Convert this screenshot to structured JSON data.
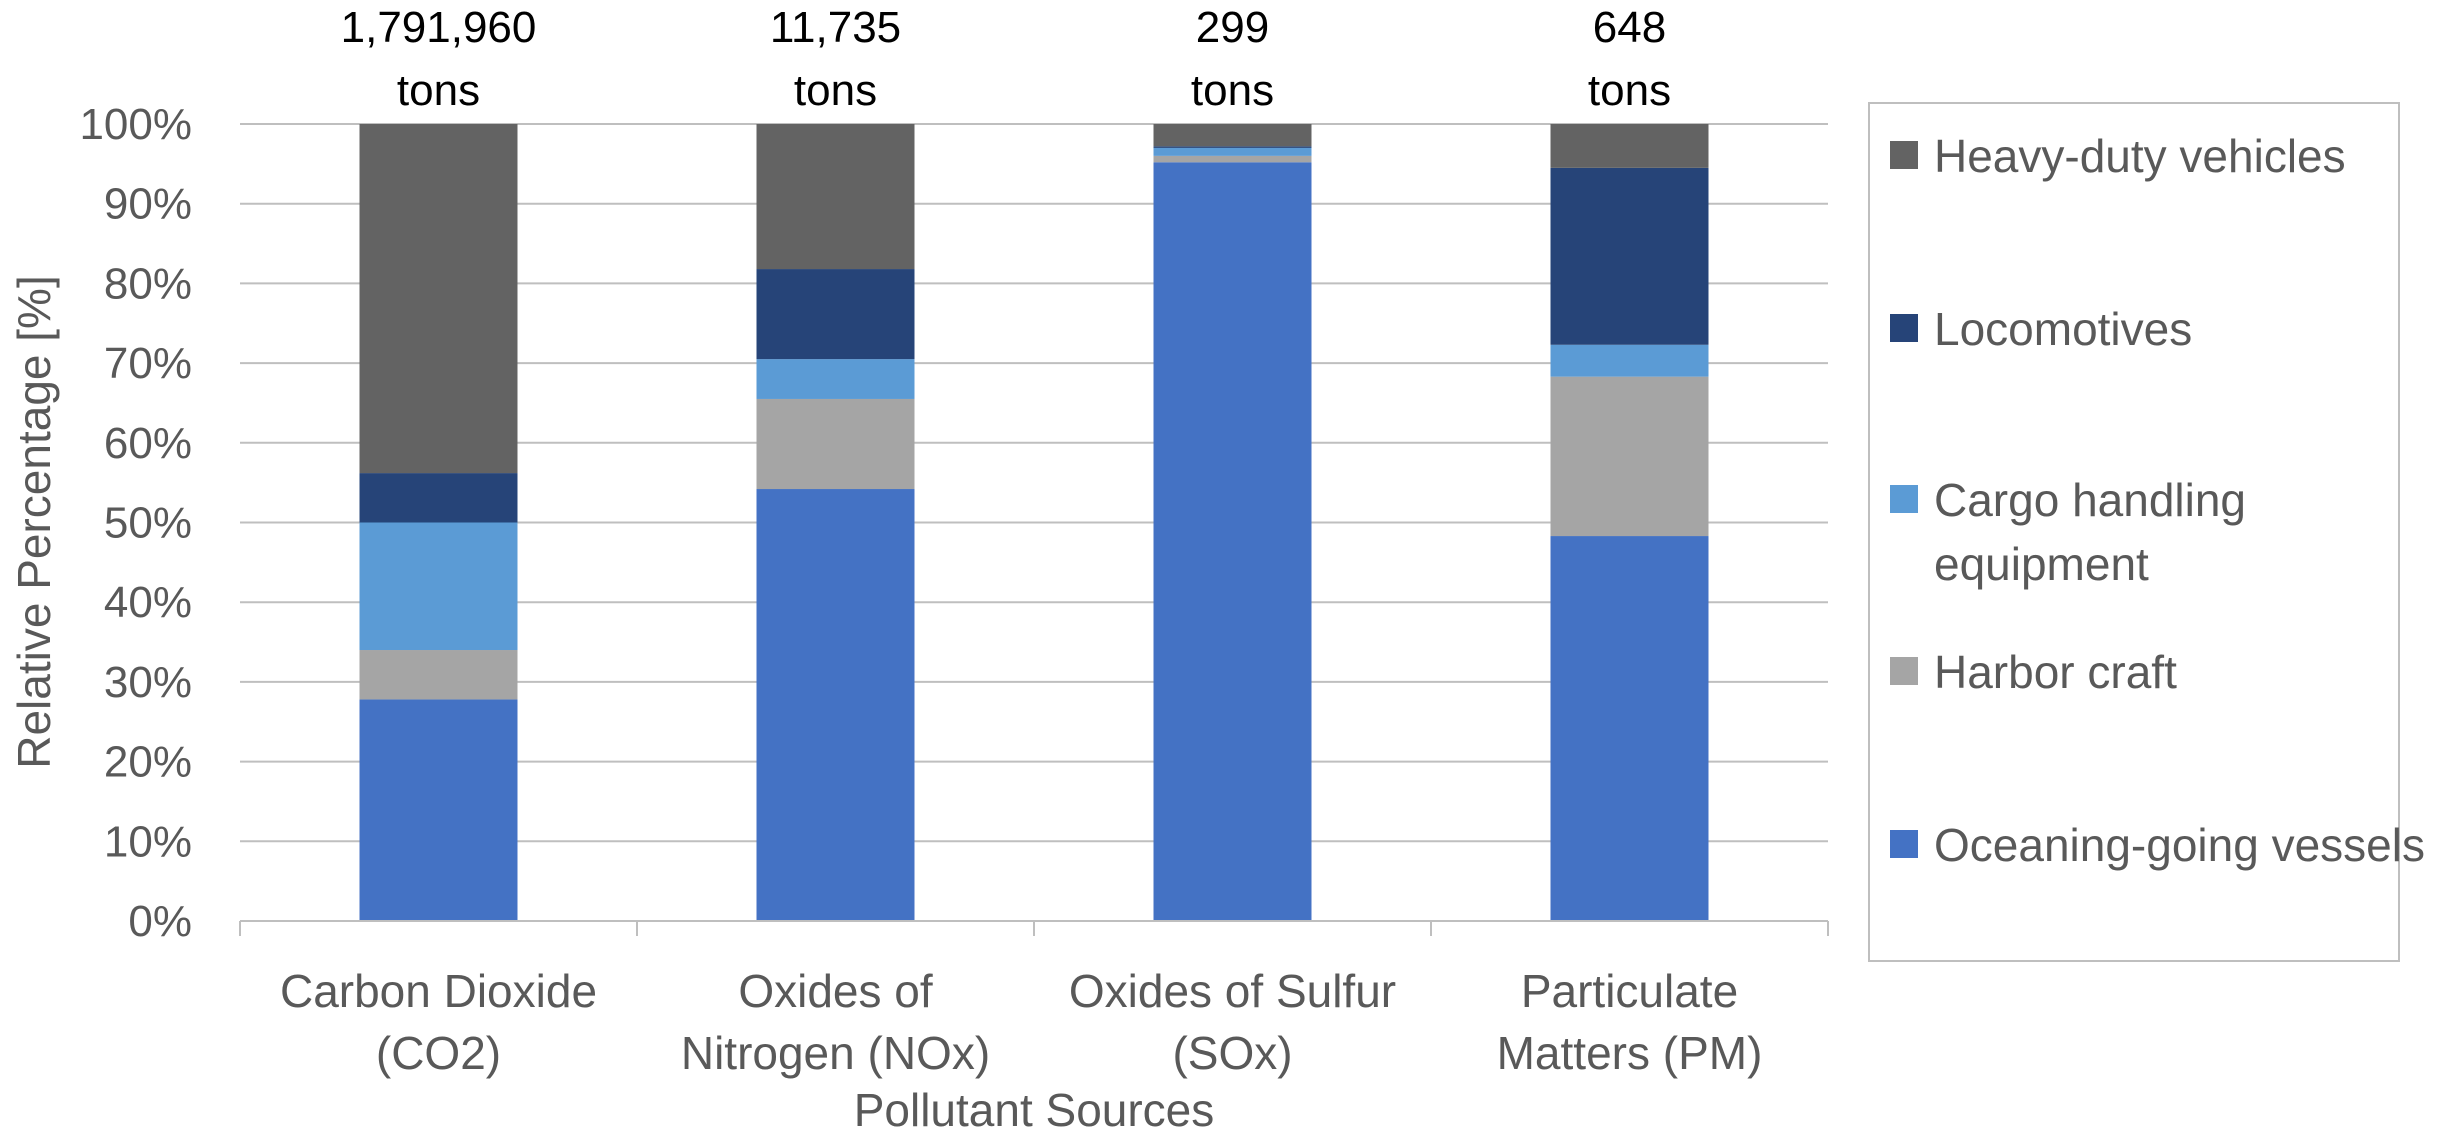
{
  "chart_data": {
    "type": "bar",
    "stacked": true,
    "normalized": true,
    "categories": [
      [
        "Carbon Dioxide",
        "(CO2)"
      ],
      [
        "Oxides of",
        "Nitrogen (NOx)"
      ],
      [
        "Oxides of Sulfur",
        "(SOx)"
      ],
      [
        "Particulate",
        "Matters (PM)"
      ]
    ],
    "totals": [
      [
        "1,791,960",
        "tons"
      ],
      [
        "11,735",
        "tons"
      ],
      [
        "299",
        "tons"
      ],
      [
        "648",
        "tons"
      ]
    ],
    "series": [
      {
        "name": "Oceaning-going vessels",
        "color": "#4472C4",
        "values": [
          27.8,
          54.2,
          95.2,
          48.3
        ]
      },
      {
        "name": "Harbor craft",
        "color": "#A5A5A5",
        "values": [
          6.2,
          11.3,
          0.8,
          20.0
        ]
      },
      {
        "name": "Cargo handling equipment",
        "color": "#5B9BD5",
        "values": [
          16.0,
          5.0,
          1.0,
          4.0
        ]
      },
      {
        "name": "Locomotives",
        "color": "#264478",
        "values": [
          6.2,
          11.3,
          0.2,
          22.2
        ]
      },
      {
        "name": "Heavy-duty vehicles",
        "color": "#636363",
        "values": [
          43.8,
          18.2,
          2.8,
          5.5
        ]
      }
    ],
    "legend_labels": [
      [
        "Heavy-duty vehicles"
      ],
      [
        "Locomotives"
      ],
      [
        "Cargo handling",
        "equipment"
      ],
      [
        "Harbor craft"
      ],
      [
        "Oceaning-going vessels"
      ]
    ],
    "ylabel": "Relative Percentage [%]",
    "xlabel": "Pollutant Sources",
    "ylim": [
      0,
      100
    ],
    "yticks": [
      "0%",
      "10%",
      "20%",
      "30%",
      "40%",
      "50%",
      "60%",
      "70%",
      "80%",
      "90%",
      "100%"
    ],
    "grid": true,
    "legend_position": "right"
  }
}
